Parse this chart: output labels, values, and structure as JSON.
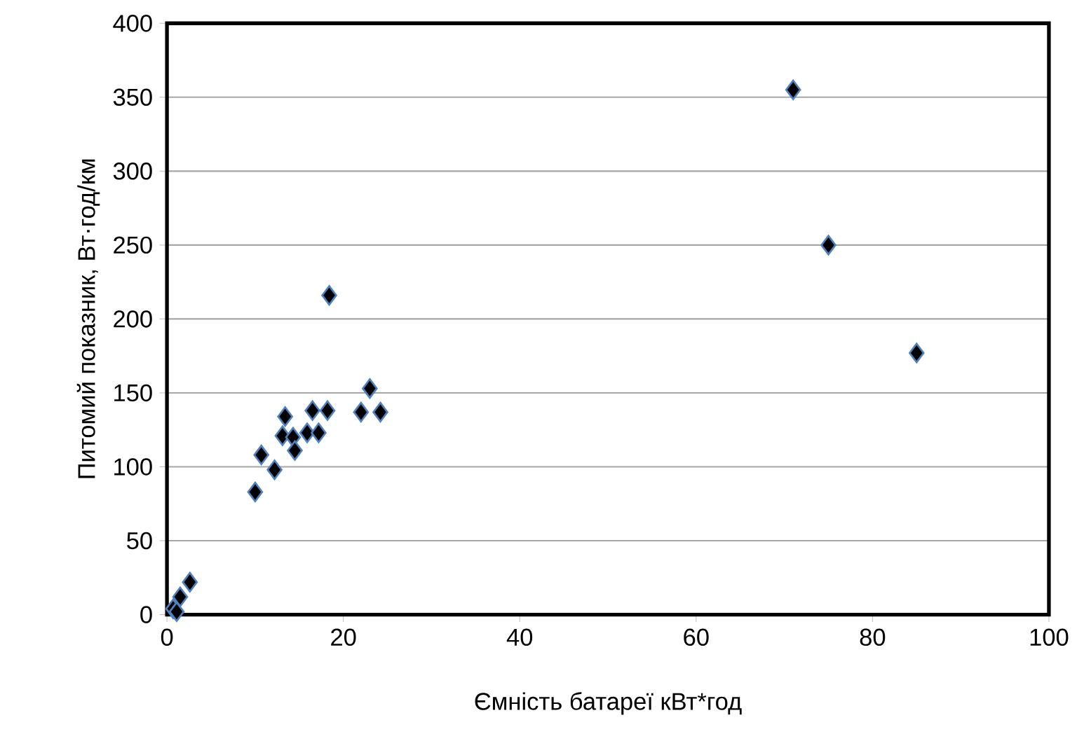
{
  "chart_data": {
    "type": "scatter",
    "xlabel": "Ємність батареї кВт*год",
    "ylabel": "Питомий показник, Вт·год/км",
    "x": [
      18.4,
      23.0,
      22.0,
      24.2,
      13.4,
      16.5,
      18.2,
      13.1,
      14.3,
      15.9,
      17.2,
      14.5,
      10.7,
      12.2,
      10.0,
      2.6,
      1.5,
      0.7,
      1.1,
      71,
      75,
      85
    ],
    "values": [
      216,
      153,
      137,
      137,
      134,
      138,
      138,
      121,
      120,
      123,
      123,
      111,
      108,
      98,
      83,
      22,
      12,
      4,
      2,
      355,
      250,
      177
    ],
    "color": "#000000",
    "xlim": [
      0,
      100
    ],
    "ylim": [
      0,
      400
    ],
    "xticks": [
      0,
      20,
      40,
      60,
      80,
      100
    ],
    "yticks": [
      0,
      50,
      100,
      150,
      200,
      250,
      300,
      350,
      400
    ],
    "grid": "y",
    "marker": "diamond"
  }
}
